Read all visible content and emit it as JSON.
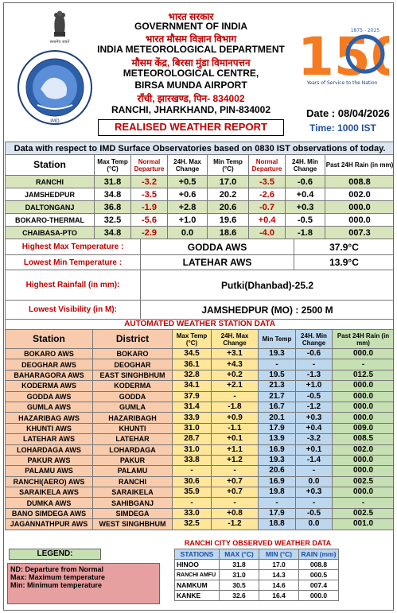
{
  "header": {
    "hindi_govt": "भारत सरकार",
    "govt": "GOVERNMENT OF INDIA",
    "hindi_dept": "भारत मौसम विज्ञान विभाग",
    "dept": "INDIA METEOROLOGICAL DEPARTMENT",
    "hindi_centre": "मौसम केंद्र, बिरसा मुंडा विमानपत्तन",
    "centre1": "METEOROLOGICAL CENTRE,",
    "centre2": "BIRSA MUNDA AIRPORT",
    "hindi_city": "राँची, झारखण्ड, पिन- 834002",
    "city": "RANCHI, JHARKHAND, PIN-834002",
    "date": "Date : 08/04/2026",
    "time": "Time: 1000 IST",
    "report_title": "REALISED WEATHER REPORT",
    "emblem_caption": "सत्यमेव जयते",
    "logo_150_text": "150",
    "logo_150_caption": "Years of Service to the Nation",
    "logo_150_years": "1875 - 2025"
  },
  "table1": {
    "banner": "Data with respect to IMD Surface Observatories based on 0830 IST observations of today.",
    "headers": [
      "Station",
      "Max Temp (°C)",
      "Normal Departure",
      "24H. Max Change",
      "Min Temp (°C)",
      "Normal Departure",
      "24H. Min Change",
      "Past 24H Rain (in mm)"
    ],
    "rows": [
      [
        "RANCHI",
        "31.8",
        "-3.2",
        "+0.5",
        "17.0",
        "-3.5",
        "-0.6",
        "008.8"
      ],
      [
        "JAMSHEDPUR",
        "34.8",
        "-3.5",
        "+0.6",
        "20.2",
        "-2.6",
        "+0.4",
        "002.0"
      ],
      [
        "DALTONGANJ",
        "36.8",
        "-1.9",
        "+2.8",
        "20.6",
        "-0.7",
        "+0.3",
        "000.0"
      ],
      [
        "BOKARO-THERMAL",
        "32.5",
        "-5.6",
        "+1.0",
        "19.6",
        "+0.4",
        "-0.5",
        "000.0"
      ],
      [
        "CHAIBASA-PTO",
        "34.8",
        "-2.9",
        "0.0",
        "18.6",
        "-4.0",
        "-1.8",
        "007.3"
      ]
    ]
  },
  "extremes": {
    "highest_max_label": "Highest Max Temperature :",
    "highest_max_station": "GODDA AWS",
    "highest_max_value": "37.9°C",
    "lowest_min_label": "Lowest Min Temperature :",
    "lowest_min_station": "LATEHAR AWS",
    "lowest_min_value": "13.9°C",
    "highest_rain_label": "Highest Rainfall (in mm):",
    "highest_rain_value": "Putki(Dhanbad)-25.2",
    "lowest_vis_label": "Lowest Visibility (in M):",
    "lowest_vis_value": "JAMSHEDPUR (MO) : 2500 M"
  },
  "aws": {
    "banner": "AUTOMATED WEATHER STATION DATA",
    "headers": [
      "Station",
      "District",
      "Max Temp (°C)",
      "24H. Max Change",
      "Min Temp",
      "24H. Min Change",
      "Past 24H Rain (in mm)"
    ],
    "rows": [
      [
        "BOKARO AWS",
        "BOKARO",
        "34.5",
        "+3.1",
        "19.3",
        "-0.6",
        "000.0"
      ],
      [
        "DEOGHAR AWS",
        "DEOGHAR",
        "36.1",
        "+4.3",
        "-",
        "-",
        "-"
      ],
      [
        "BAHARAGORA AWS",
        "EAST SINGHBHUM",
        "32.8",
        "+0.2",
        "19.5",
        "-1.3",
        "012.5"
      ],
      [
        "KODERMA AWS",
        "KODERMA",
        "34.1",
        "+2.1",
        "21.3",
        "+1.0",
        "000.0"
      ],
      [
        "GODDA AWS",
        "GODDA",
        "37.9",
        "-",
        "21.7",
        "-0.5",
        "000.0"
      ],
      [
        "GUMLA AWS",
        "GUMLA",
        "31.4",
        "-1.8",
        "16.7",
        "-1.2",
        "000.0"
      ],
      [
        "HAZARIBAG AWS",
        "HAZARIBAGH",
        "33.9",
        "+0.9",
        "20.1",
        "+0.3",
        "000.0"
      ],
      [
        "KHUNTI AWS",
        "KHUNTI",
        "31.0",
        "-1.1",
        "17.9",
        "+0.4",
        "009.0"
      ],
      [
        "LATEHAR AWS",
        "LATEHAR",
        "28.7",
        "+0.1",
        "13.9",
        "-3.2",
        "008.5"
      ],
      [
        "LOHARDAGA AWS",
        "LOHARDAGA",
        "31.0",
        "+1.1",
        "16.9",
        "+0.1",
        "002.0"
      ],
      [
        "PAKUR AWS",
        "PAKUR",
        "33.8",
        "+1.2",
        "19.3",
        "-1.4",
        "000.0"
      ],
      [
        "PALAMU AWS",
        "PALAMU",
        "-",
        "-",
        "20.6",
        "-",
        "000.0"
      ],
      [
        "RANCHI(AERO) AWS",
        "RANCHI",
        "30.6",
        "+0.7",
        "16.9",
        "0.0",
        "002.5"
      ],
      [
        "SARAIKELA AWS",
        "SARAIKELA",
        "35.9",
        "+0.7",
        "19.8",
        "+0.3",
        "000.0"
      ],
      [
        "DUMKA AWS",
        "SAHIBGANJ",
        "-",
        "-",
        "-",
        "-",
        "-"
      ],
      [
        "BANO SIMDEGA AWS",
        "SIMDEGA",
        "33.0",
        "+0.8",
        "17.9",
        "-0.5",
        "002.5"
      ],
      [
        "JAGANNATHPUR AWS",
        "WEST SINGHBHUM",
        "32.5",
        "-1.2",
        "18.8",
        "0.0",
        "001.0"
      ]
    ]
  },
  "legend": {
    "title": "LEGEND:",
    "lines": [
      "ND: Departure from Normal",
      "Max: Maximum temperature",
      "Min: Minimum temperature"
    ]
  },
  "ranchi_city": {
    "title": "RANCHI CITY OBSERVED WEATHER DATA",
    "headers": [
      "STATIONS",
      "MAX (°C)",
      "MIN (°C)",
      "RAIN (mm)"
    ],
    "rows": [
      [
        "HINOO",
        "31.8",
        "17.0",
        "008.8"
      ],
      [
        "RANCHI AMFU",
        "31.0",
        "14.3",
        "000.5"
      ],
      [
        "NAMKUM",
        "30.5",
        "14.6",
        "007.4"
      ],
      [
        "KANKE",
        "32.6",
        "16.4",
        "000.0"
      ]
    ]
  },
  "colors": {
    "hindi_red": "#c00000",
    "time_blue": "#1f4ea3",
    "row_green": "#d8e4bc",
    "aws_pink": "#f8cbad",
    "aws_yellow": "#ffe699",
    "aws_blue": "#bdd7ee",
    "aws_green": "#c6e0b4"
  }
}
